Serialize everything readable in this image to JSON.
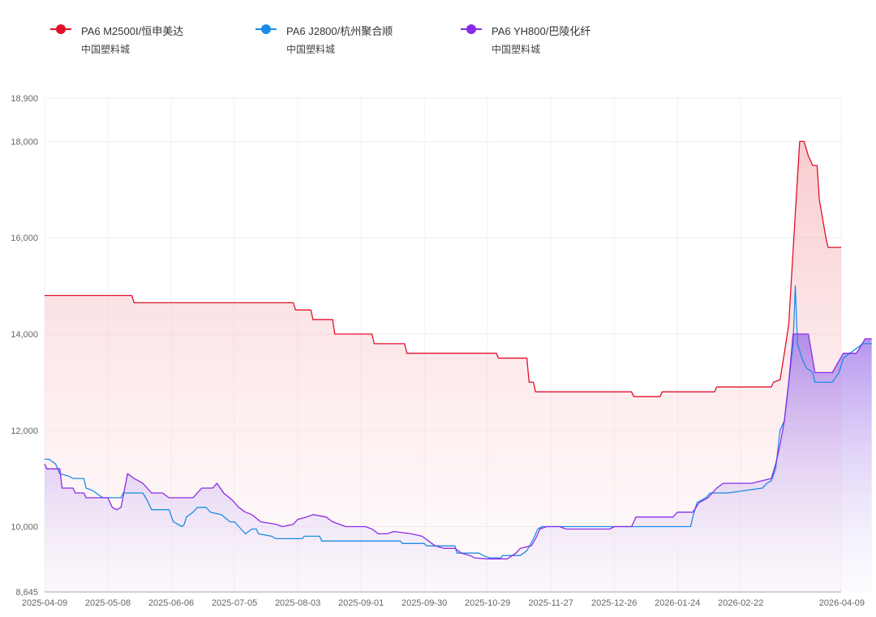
{
  "legend": [
    {
      "name": "PA6 M2500I/恒申美达",
      "source": "中国塑料城",
      "color": "#e0102a",
      "icon": "line-dot-marker"
    },
    {
      "name": "PA6 J2800/杭州聚合顺",
      "source": "中国塑料城",
      "color": "#1a8ce8",
      "icon": "line-dot-marker"
    },
    {
      "name": "PA6 YH800/巴陵化纤",
      "source": "中国塑料城",
      "color": "#8a2be8",
      "icon": "line-dot-marker"
    }
  ],
  "chart_data": {
    "type": "area",
    "title": "",
    "xlabel": "",
    "ylabel": "",
    "x_range": [
      "2025-04-09",
      "2026-04-09"
    ],
    "ylim": [
      8645,
      18900
    ],
    "y_ticks": [
      "8,645",
      "10,000",
      "12,000",
      "14,000",
      "16,000",
      "18,000",
      "18,900"
    ],
    "y_tick_values": [
      8645,
      10000,
      12000,
      14000,
      16000,
      18000,
      18900
    ],
    "x_ticks": [
      "2025-04-09",
      "2025-05-08",
      "2025-06-06",
      "2025-07-05",
      "2025-08-03",
      "2025-09-01",
      "2025-09-30",
      "2025-10-29",
      "2025-11-27",
      "2025-12-26",
      "2026-01-24",
      "2026-02-22",
      "2026-04-09"
    ],
    "grid": true,
    "legend_position": "top",
    "series": [
      {
        "name": "PA6 M2500I/恒申美达",
        "color": "#e0102a",
        "fill": true,
        "points": [
          [
            "2025-04-09",
            14800
          ],
          [
            "2025-05-19",
            14800
          ],
          [
            "2025-05-20",
            14650
          ],
          [
            "2025-08-01",
            14650
          ],
          [
            "2025-08-02",
            14500
          ],
          [
            "2025-08-09",
            14500
          ],
          [
            "2025-08-10",
            14300
          ],
          [
            "2025-08-19",
            14300
          ],
          [
            "2025-08-20",
            14000
          ],
          [
            "2025-09-06",
            14000
          ],
          [
            "2025-09-07",
            13800
          ],
          [
            "2025-09-21",
            13800
          ],
          [
            "2025-09-22",
            13600
          ],
          [
            "2025-11-02",
            13600
          ],
          [
            "2025-11-03",
            13500
          ],
          [
            "2025-11-16",
            13500
          ],
          [
            "2025-11-17",
            13000
          ],
          [
            "2025-11-19",
            13000
          ],
          [
            "2025-11-20",
            12800
          ],
          [
            "2026-01-03",
            12800
          ],
          [
            "2026-01-04",
            12700
          ],
          [
            "2026-01-16",
            12700
          ],
          [
            "2026-01-17",
            12800
          ],
          [
            "2026-02-10",
            12800
          ],
          [
            "2026-02-11",
            12900
          ],
          [
            "2026-03-08",
            12900
          ],
          [
            "2026-03-09",
            13000
          ],
          [
            "2026-03-12",
            13050
          ],
          [
            "2026-03-14",
            13600
          ],
          [
            "2026-03-16",
            14200
          ],
          [
            "2026-03-19",
            16500
          ],
          [
            "2026-03-21",
            18000
          ],
          [
            "2026-03-23",
            18000
          ],
          [
            "2026-03-25",
            17700
          ],
          [
            "2026-03-27",
            17500
          ],
          [
            "2026-03-29",
            17500
          ],
          [
            "2026-03-30",
            16800
          ],
          [
            "2026-04-02",
            16000
          ],
          [
            "2026-04-03",
            15800
          ],
          [
            "2026-04-09",
            15800
          ]
        ]
      },
      {
        "name": "PA6 J2800/杭州聚合顺",
        "color": "#1a8ce8",
        "fill": false,
        "points": [
          [
            "2025-04-09",
            11400
          ],
          [
            "2025-04-11",
            11400
          ],
          [
            "2025-04-14",
            11300
          ],
          [
            "2025-04-16",
            11100
          ],
          [
            "2025-04-20",
            11050
          ],
          [
            "2025-04-22",
            11000
          ],
          [
            "2025-04-27",
            11000
          ],
          [
            "2025-04-28",
            10800
          ],
          [
            "2025-05-01",
            10750
          ],
          [
            "2025-05-04",
            10650
          ],
          [
            "2025-05-06",
            10600
          ],
          [
            "2025-05-14",
            10600
          ],
          [
            "2025-05-15",
            10700
          ],
          [
            "2025-05-24",
            10700
          ],
          [
            "2025-05-26",
            10550
          ],
          [
            "2025-05-28",
            10350
          ],
          [
            "2025-06-05",
            10350
          ],
          [
            "2025-06-07",
            10100
          ],
          [
            "2025-06-11",
            10000
          ],
          [
            "2025-06-12",
            10050
          ],
          [
            "2025-06-13",
            10200
          ],
          [
            "2025-06-16",
            10300
          ],
          [
            "2025-06-18",
            10400
          ],
          [
            "2025-06-22",
            10400
          ],
          [
            "2025-06-24",
            10300
          ],
          [
            "2025-06-29",
            10250
          ],
          [
            "2025-07-03",
            10100
          ],
          [
            "2025-07-05",
            10100
          ],
          [
            "2025-07-08",
            9950
          ],
          [
            "2025-07-10",
            9850
          ],
          [
            "2025-07-13",
            9950
          ],
          [
            "2025-07-15",
            9950
          ],
          [
            "2025-07-16",
            9850
          ],
          [
            "2025-07-22",
            9800
          ],
          [
            "2025-07-24",
            9750
          ],
          [
            "2025-08-05",
            9750
          ],
          [
            "2025-08-06",
            9800
          ],
          [
            "2025-08-13",
            9800
          ],
          [
            "2025-08-14",
            9700
          ],
          [
            "2025-09-19",
            9700
          ],
          [
            "2025-09-20",
            9650
          ],
          [
            "2025-09-30",
            9650
          ],
          [
            "2025-10-01",
            9600
          ],
          [
            "2025-10-14",
            9600
          ],
          [
            "2025-10-15",
            9450
          ],
          [
            "2025-10-25",
            9450
          ],
          [
            "2025-10-27",
            9400
          ],
          [
            "2025-10-30",
            9350
          ],
          [
            "2025-11-04",
            9350
          ],
          [
            "2025-11-05",
            9400
          ],
          [
            "2025-11-13",
            9400
          ],
          [
            "2025-11-16",
            9500
          ],
          [
            "2025-11-19",
            9750
          ],
          [
            "2025-11-21",
            9950
          ],
          [
            "2025-11-23",
            10000
          ],
          [
            "2026-01-30",
            10000
          ],
          [
            "2026-01-31",
            10200
          ],
          [
            "2026-02-02",
            10500
          ],
          [
            "2026-02-06",
            10600
          ],
          [
            "2026-02-08",
            10700
          ],
          [
            "2026-02-16",
            10700
          ],
          [
            "2026-03-04",
            10800
          ],
          [
            "2026-03-06",
            10900
          ],
          [
            "2026-03-08",
            10950
          ],
          [
            "2026-03-10",
            11200
          ],
          [
            "2026-03-12",
            12000
          ],
          [
            "2026-03-14",
            12200
          ],
          [
            "2026-03-16",
            13000
          ],
          [
            "2026-03-18",
            13800
          ],
          [
            "2026-03-19",
            15000
          ],
          [
            "2026-03-20",
            13800
          ],
          [
            "2026-03-22",
            13500
          ],
          [
            "2026-03-24",
            13300
          ],
          [
            "2026-03-27",
            13200
          ],
          [
            "2026-03-28",
            13000
          ],
          [
            "2026-04-05",
            13000
          ],
          [
            "2026-04-08",
            13200
          ],
          [
            "2026-04-10",
            13500
          ],
          [
            "2026-04-13",
            13600
          ],
          [
            "2026-04-16",
            13700
          ],
          [
            "2026-04-19",
            13800
          ],
          [
            "2026-04-23",
            13800
          ]
        ]
      },
      {
        "name": "PA6 YH800/巴陵化纤",
        "color": "#8a2be8",
        "fill": true,
        "points": [
          [
            "2025-04-09",
            11300
          ],
          [
            "2025-04-10",
            11200
          ],
          [
            "2025-04-16",
            11200
          ],
          [
            "2025-04-17",
            10800
          ],
          [
            "2025-04-22",
            10800
          ],
          [
            "2025-04-23",
            10700
          ],
          [
            "2025-04-27",
            10700
          ],
          [
            "2025-04-28",
            10600
          ],
          [
            "2025-05-08",
            10600
          ],
          [
            "2025-05-10",
            10400
          ],
          [
            "2025-05-12",
            10350
          ],
          [
            "2025-05-14",
            10400
          ],
          [
            "2025-05-17",
            11100
          ],
          [
            "2025-05-20",
            11000
          ],
          [
            "2025-05-24",
            10900
          ],
          [
            "2025-05-28",
            10700
          ],
          [
            "2025-06-02",
            10700
          ],
          [
            "2025-06-05",
            10600
          ],
          [
            "2025-06-16",
            10600
          ],
          [
            "2025-06-20",
            10800
          ],
          [
            "2025-06-25",
            10800
          ],
          [
            "2025-06-27",
            10900
          ],
          [
            "2025-06-30",
            10700
          ],
          [
            "2025-07-04",
            10550
          ],
          [
            "2025-07-07",
            10400
          ],
          [
            "2025-07-10",
            10300
          ],
          [
            "2025-07-13",
            10250
          ],
          [
            "2025-07-17",
            10100
          ],
          [
            "2025-07-24",
            10050
          ],
          [
            "2025-07-27",
            10000
          ],
          [
            "2025-08-01",
            10050
          ],
          [
            "2025-08-03",
            10150
          ],
          [
            "2025-08-07",
            10200
          ],
          [
            "2025-08-10",
            10250
          ],
          [
            "2025-08-16",
            10200
          ],
          [
            "2025-08-19",
            10100
          ],
          [
            "2025-08-25",
            10000
          ],
          [
            "2025-09-03",
            10000
          ],
          [
            "2025-09-06",
            9950
          ],
          [
            "2025-09-09",
            9850
          ],
          [
            "2025-09-13",
            9850
          ],
          [
            "2025-09-16",
            9900
          ],
          [
            "2025-09-24",
            9850
          ],
          [
            "2025-09-29",
            9800
          ],
          [
            "2025-10-02",
            9700
          ],
          [
            "2025-10-05",
            9600
          ],
          [
            "2025-10-09",
            9550
          ],
          [
            "2025-10-14",
            9550
          ],
          [
            "2025-10-17",
            9450
          ],
          [
            "2025-10-21",
            9400
          ],
          [
            "2025-10-23",
            9350
          ],
          [
            "2025-10-29",
            9330
          ],
          [
            "2025-11-07",
            9330
          ],
          [
            "2025-11-11",
            9450
          ],
          [
            "2025-11-13",
            9550
          ],
          [
            "2025-11-18",
            9600
          ],
          [
            "2025-11-20",
            9750
          ],
          [
            "2025-11-22",
            9950
          ],
          [
            "2025-11-25",
            10000
          ],
          [
            "2025-12-01",
            10000
          ],
          [
            "2025-12-04",
            9950
          ],
          [
            "2025-12-24",
            9950
          ],
          [
            "2025-12-26",
            10000
          ],
          [
            "2026-01-03",
            10000
          ],
          [
            "2026-01-05",
            10200
          ],
          [
            "2026-01-22",
            10200
          ],
          [
            "2026-01-24",
            10300
          ],
          [
            "2026-01-31",
            10300
          ],
          [
            "2026-02-03",
            10500
          ],
          [
            "2026-02-07",
            10600
          ],
          [
            "2026-02-11",
            10800
          ],
          [
            "2026-02-14",
            10900
          ],
          [
            "2026-02-27",
            10900
          ],
          [
            "2026-03-08",
            11000
          ],
          [
            "2026-03-10",
            11300
          ],
          [
            "2026-03-12",
            11700
          ],
          [
            "2026-03-14",
            12200
          ],
          [
            "2026-03-16",
            13000
          ],
          [
            "2026-03-18",
            14000
          ],
          [
            "2026-03-25",
            14000
          ],
          [
            "2026-03-28",
            13200
          ],
          [
            "2026-04-05",
            13200
          ],
          [
            "2026-04-10",
            13600
          ],
          [
            "2026-04-16",
            13600
          ],
          [
            "2026-04-20",
            13900
          ],
          [
            "2026-04-23",
            13900
          ]
        ]
      }
    ]
  }
}
